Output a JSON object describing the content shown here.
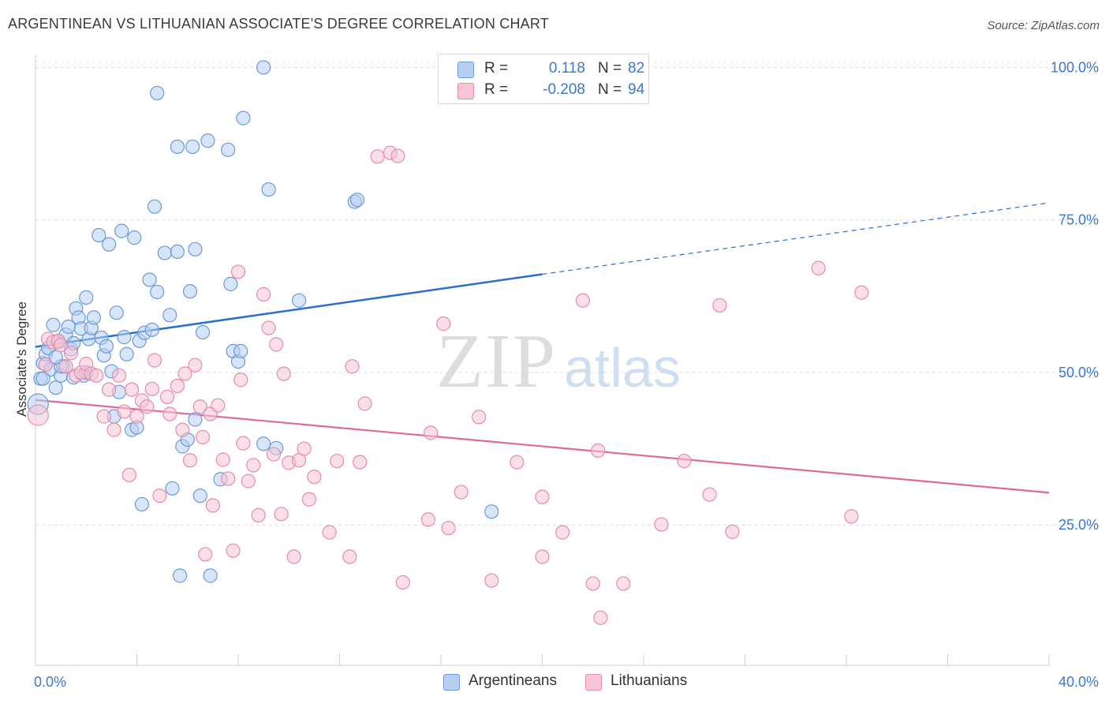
{
  "header": {
    "title": "ARGENTINEAN VS LITHUANIAN ASSOCIATE'S DEGREE CORRELATION CHART",
    "source": "Source: ZipAtlas.com"
  },
  "legend": {
    "rows": [
      {
        "r_label": "R =",
        "r_value": "0.118",
        "n_label": "N =",
        "n_value": "82"
      },
      {
        "r_label": "R =",
        "r_value": "-0.208",
        "n_label": "N =",
        "n_value": "94"
      }
    ]
  },
  "bottom_legend": [
    "Argentineans",
    "Lithuanians"
  ],
  "watermark": {
    "zip": "ZIP",
    "atlas": "atlas"
  },
  "colors": {
    "blue_fill": "#b7d0f2",
    "blue_stroke": "#6a9ad8",
    "blue_line": "#2a6fce",
    "pink_fill": "#f7c4d4",
    "pink_stroke": "#e88aa8",
    "pink_line": "#e0689a",
    "axis_text": "#3b78d4"
  },
  "chart_data": {
    "type": "scatter",
    "title": "ARGENTINEAN VS LITHUANIAN ASSOCIATE'S DEGREE CORRELATION CHART",
    "xlabel": "",
    "ylabel": "Associate's Degree",
    "xlim": [
      0,
      40
    ],
    "ylim": [
      2,
      102
    ],
    "x_tick_labels": [
      {
        "value": 0,
        "label": "0.0%"
      },
      {
        "value": 40,
        "label": "40.0%"
      }
    ],
    "y_tick_labels": [
      {
        "value": 25,
        "label": "25.0%"
      },
      {
        "value": 50,
        "label": "50.0%"
      },
      {
        "value": 75,
        "label": "75.0%"
      },
      {
        "value": 100,
        "label": "100.0%"
      }
    ],
    "grid": true,
    "series": [
      {
        "name": "Argentineans",
        "r": 0.118,
        "n": 82,
        "trend": {
          "x0": 0,
          "y0": 54.2,
          "x1": 20,
          "y1": 66.1,
          "dash_to_x": 40,
          "dash_to_y": 77.8
        },
        "points": [
          [
            0.1,
            44.8
          ],
          [
            0.2,
            49.0
          ],
          [
            0.3,
            51.5
          ],
          [
            0.4,
            53.0
          ],
          [
            0.5,
            54.0
          ],
          [
            0.6,
            50.5
          ],
          [
            0.7,
            57.8
          ],
          [
            0.8,
            47.5
          ],
          [
            0.9,
            55.0
          ],
          [
            1.0,
            49.5
          ],
          [
            1.1,
            51.0
          ],
          [
            1.2,
            56.2
          ],
          [
            1.3,
            57.5
          ],
          [
            1.4,
            53.8
          ],
          [
            1.5,
            49.2
          ],
          [
            1.6,
            60.5
          ],
          [
            1.7,
            59.0
          ],
          [
            1.8,
            57.2
          ],
          [
            1.9,
            49.5
          ],
          [
            2.0,
            62.3
          ],
          [
            2.1,
            55.5
          ],
          [
            2.2,
            57.3
          ],
          [
            2.3,
            59.0
          ],
          [
            2.5,
            72.5
          ],
          [
            2.6,
            55.7
          ],
          [
            2.7,
            52.8
          ],
          [
            2.8,
            54.3
          ],
          [
            2.9,
            71.0
          ],
          [
            3.1,
            42.8
          ],
          [
            3.2,
            59.8
          ],
          [
            3.3,
            46.8
          ],
          [
            3.4,
            73.2
          ],
          [
            3.5,
            55.8
          ],
          [
            3.6,
            53.0
          ],
          [
            3.8,
            40.6
          ],
          [
            3.9,
            72.1
          ],
          [
            4.0,
            41.0
          ],
          [
            4.1,
            55.2
          ],
          [
            4.2,
            28.4
          ],
          [
            4.3,
            56.5
          ],
          [
            4.5,
            65.2
          ],
          [
            4.6,
            57.0
          ],
          [
            4.7,
            77.2
          ],
          [
            4.8,
            63.2
          ],
          [
            4.8,
            95.8
          ],
          [
            5.1,
            69.6
          ],
          [
            5.3,
            59.4
          ],
          [
            5.4,
            31.0
          ],
          [
            5.6,
            69.8
          ],
          [
            5.6,
            87.0
          ],
          [
            5.7,
            16.7
          ],
          [
            5.8,
            37.9
          ],
          [
            6.0,
            39.0
          ],
          [
            6.1,
            63.3
          ],
          [
            6.2,
            87.0
          ],
          [
            6.3,
            42.3
          ],
          [
            6.3,
            70.2
          ],
          [
            6.5,
            29.8
          ],
          [
            6.6,
            56.6
          ],
          [
            6.8,
            88.0
          ],
          [
            6.9,
            16.7
          ],
          [
            7.3,
            32.5
          ],
          [
            7.6,
            86.5
          ],
          [
            7.7,
            64.5
          ],
          [
            7.8,
            53.5
          ],
          [
            8.0,
            51.8
          ],
          [
            8.1,
            53.5
          ],
          [
            8.2,
            91.7
          ],
          [
            9.0,
            38.3
          ],
          [
            9.0,
            100.0
          ],
          [
            9.2,
            80.0
          ],
          [
            9.5,
            37.6
          ],
          [
            10.4,
            61.8
          ],
          [
            12.6,
            78.0
          ],
          [
            12.7,
            78.3
          ],
          [
            18.0,
            27.2
          ],
          [
            0.3,
            49.0
          ],
          [
            1.0,
            51.0
          ],
          [
            2.0,
            50.0
          ],
          [
            3.0,
            50.2
          ],
          [
            0.8,
            52.5
          ],
          [
            1.5,
            54.8
          ]
        ]
      },
      {
        "name": "Lithuanians",
        "r": -0.208,
        "n": 94,
        "trend": {
          "x0": 0,
          "y0": 45.5,
          "x1": 40,
          "y1": 30.3
        },
        "points": [
          [
            0.1,
            43.0
          ],
          [
            0.4,
            51.3
          ],
          [
            0.5,
            55.5
          ],
          [
            0.7,
            55.0
          ],
          [
            0.9,
            55.2
          ],
          [
            1.0,
            54.5
          ],
          [
            1.2,
            51.0
          ],
          [
            1.4,
            53.2
          ],
          [
            1.6,
            49.5
          ],
          [
            1.8,
            50.0
          ],
          [
            2.0,
            51.4
          ],
          [
            2.2,
            49.8
          ],
          [
            2.4,
            49.5
          ],
          [
            2.7,
            42.8
          ],
          [
            2.9,
            47.2
          ],
          [
            3.1,
            40.6
          ],
          [
            3.3,
            49.5
          ],
          [
            3.5,
            43.6
          ],
          [
            3.7,
            33.2
          ],
          [
            3.8,
            47.2
          ],
          [
            4.0,
            42.8
          ],
          [
            4.2,
            45.4
          ],
          [
            4.4,
            44.4
          ],
          [
            4.6,
            47.3
          ],
          [
            4.7,
            52.0
          ],
          [
            4.9,
            29.8
          ],
          [
            5.2,
            46.0
          ],
          [
            5.3,
            43.2
          ],
          [
            5.6,
            47.8
          ],
          [
            5.8,
            40.6
          ],
          [
            5.9,
            49.8
          ],
          [
            6.1,
            35.6
          ],
          [
            6.3,
            51.2
          ],
          [
            6.5,
            44.4
          ],
          [
            6.6,
            39.4
          ],
          [
            6.7,
            20.2
          ],
          [
            6.9,
            43.2
          ],
          [
            7.0,
            28.2
          ],
          [
            7.2,
            44.6
          ],
          [
            7.4,
            35.7
          ],
          [
            7.6,
            32.6
          ],
          [
            7.8,
            20.8
          ],
          [
            8.0,
            66.5
          ],
          [
            8.1,
            48.8
          ],
          [
            8.2,
            38.4
          ],
          [
            8.4,
            32.2
          ],
          [
            8.6,
            34.8
          ],
          [
            8.8,
            26.6
          ],
          [
            9.0,
            62.8
          ],
          [
            9.2,
            57.3
          ],
          [
            9.4,
            36.6
          ],
          [
            9.5,
            54.6
          ],
          [
            9.7,
            26.8
          ],
          [
            9.8,
            49.8
          ],
          [
            10.0,
            35.2
          ],
          [
            10.2,
            19.8
          ],
          [
            10.4,
            35.6
          ],
          [
            10.6,
            37.5
          ],
          [
            10.8,
            29.2
          ],
          [
            11.0,
            32.9
          ],
          [
            11.6,
            23.8
          ],
          [
            11.9,
            35.5
          ],
          [
            12.4,
            19.8
          ],
          [
            12.5,
            51.0
          ],
          [
            12.8,
            35.3
          ],
          [
            13.0,
            44.9
          ],
          [
            13.5,
            85.4
          ],
          [
            14.0,
            86.0
          ],
          [
            14.3,
            85.5
          ],
          [
            14.5,
            15.6
          ],
          [
            15.5,
            25.9
          ],
          [
            15.6,
            40.1
          ],
          [
            16.1,
            58.0
          ],
          [
            16.3,
            24.5
          ],
          [
            16.8,
            30.4
          ],
          [
            17.5,
            42.7
          ],
          [
            18.0,
            15.9
          ],
          [
            19.0,
            35.3
          ],
          [
            20.0,
            29.6
          ],
          [
            20.8,
            23.8
          ],
          [
            20.0,
            19.8
          ],
          [
            21.6,
            61.8
          ],
          [
            22.0,
            15.4
          ],
          [
            22.2,
            37.2
          ],
          [
            22.3,
            9.8
          ],
          [
            23.2,
            15.4
          ],
          [
            24.7,
            25.1
          ],
          [
            25.6,
            35.5
          ],
          [
            26.6,
            30.0
          ],
          [
            27.0,
            61.0
          ],
          [
            27.5,
            23.9
          ],
          [
            30.9,
            67.1
          ],
          [
            32.2,
            26.4
          ],
          [
            32.6,
            63.1
          ]
        ]
      }
    ]
  }
}
